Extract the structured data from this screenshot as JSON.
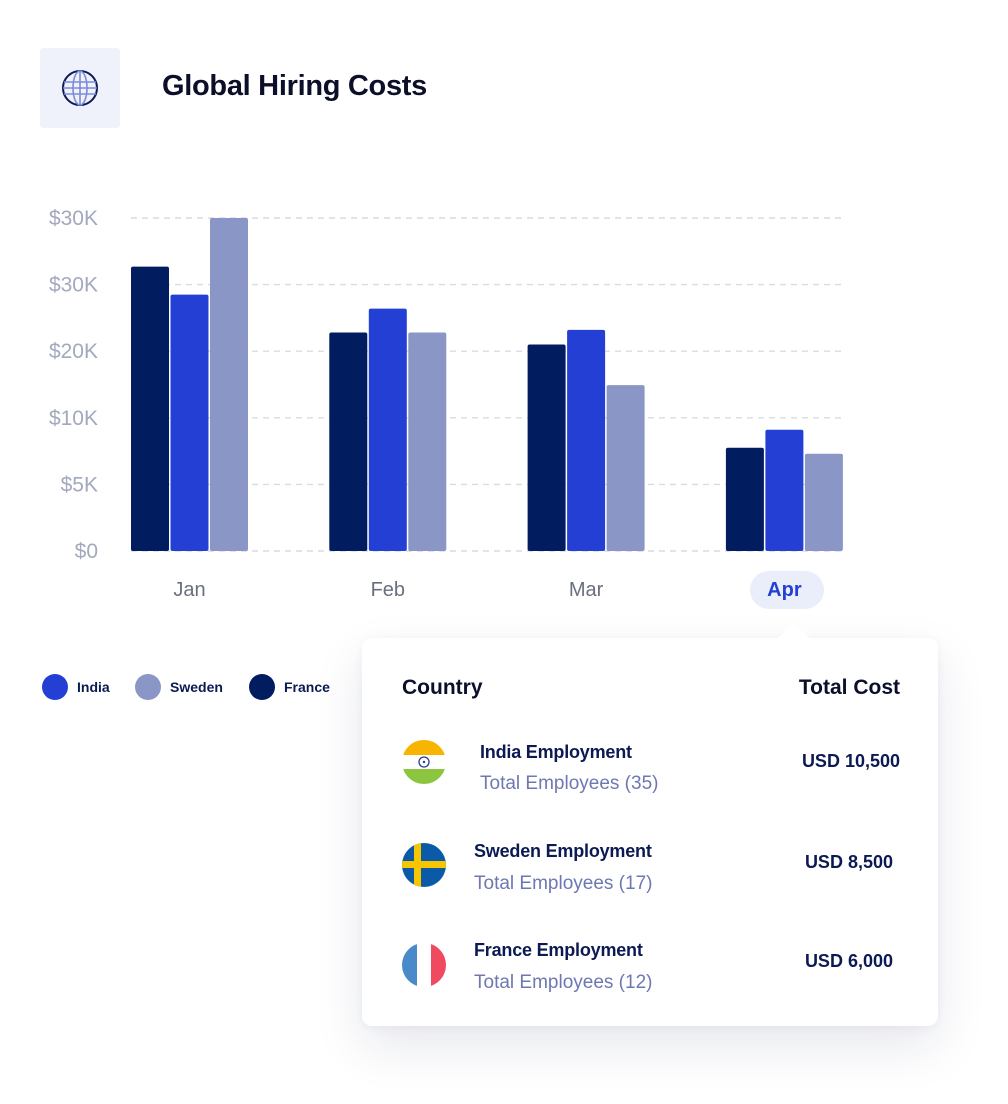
{
  "header": {
    "title": "Global Hiring Costs",
    "icon": "globe-icon"
  },
  "chart_data": {
    "type": "bar",
    "categories": [
      "Jan",
      "Feb",
      "Mar",
      "Apr"
    ],
    "y_tick_labels": [
      "$0",
      "$5K",
      "$10K",
      "$20K",
      "$30K",
      "$30K"
    ],
    "grid": true,
    "legend_position": "bottom-left",
    "highlighted_category": "Apr",
    "series": [
      {
        "name": "France",
        "color": "#011d60",
        "values": [
          4.27,
          3.28,
          3.1,
          1.55
        ]
      },
      {
        "name": "India",
        "color": "#2440d4",
        "values": [
          3.85,
          3.64,
          3.32,
          1.82
        ]
      },
      {
        "name": "Sweden",
        "color": "#8a96c6",
        "values": [
          5.0,
          3.28,
          2.49,
          1.46
        ]
      }
    ],
    "ylim": [
      0,
      5
    ]
  },
  "legend": [
    {
      "label": "India",
      "color": "#2440d4"
    },
    {
      "label": "Sweden",
      "color": "#8a96c6"
    },
    {
      "label": "France",
      "color": "#011d60"
    }
  ],
  "tooltip": {
    "header_country": "Country",
    "header_cost": "Total Cost",
    "rows": [
      {
        "flag": "india-flag-icon",
        "name": "India Employment",
        "employees": "Total Employees (35)",
        "cost": "USD 10,500"
      },
      {
        "flag": "sweden-flag-icon",
        "name": "Sweden Employment",
        "employees": "Total Employees (17)",
        "cost": "USD 8,500"
      },
      {
        "flag": "france-flag-icon",
        "name": "France Employment",
        "employees": "Total Employees (12)",
        "cost": "USD 6,000"
      }
    ]
  }
}
